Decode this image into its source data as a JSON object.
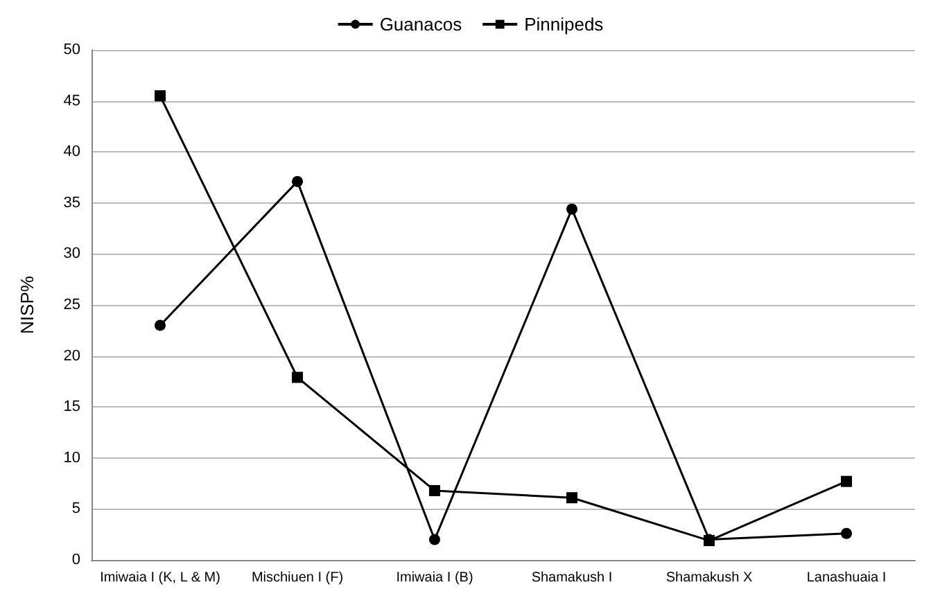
{
  "chart_data": {
    "type": "line",
    "ylabel": "NISP%",
    "categories": [
      "Imiwaia I (K, L & M)",
      "Mischiuen I (F)",
      "Imiwaia I (B)",
      "Shamakush I",
      "Shamakush X",
      "Lanashuaia I"
    ],
    "series": [
      {
        "name": "Guanacos",
        "color": "#000000",
        "marker": "circle",
        "values": [
          23.0,
          37.1,
          2.0,
          34.4,
          2.0,
          2.6
        ]
      },
      {
        "name": "Pinnipeds",
        "color": "#000000",
        "marker": "square",
        "values": [
          45.5,
          17.9,
          6.8,
          6.1,
          1.9,
          7.7
        ]
      }
    ],
    "ylim": [
      0,
      50
    ],
    "yticks": [
      0,
      5,
      10,
      15,
      20,
      25,
      30,
      35,
      40,
      45,
      50
    ],
    "grid": "y",
    "legend": "top",
    "line_style": "solid"
  }
}
